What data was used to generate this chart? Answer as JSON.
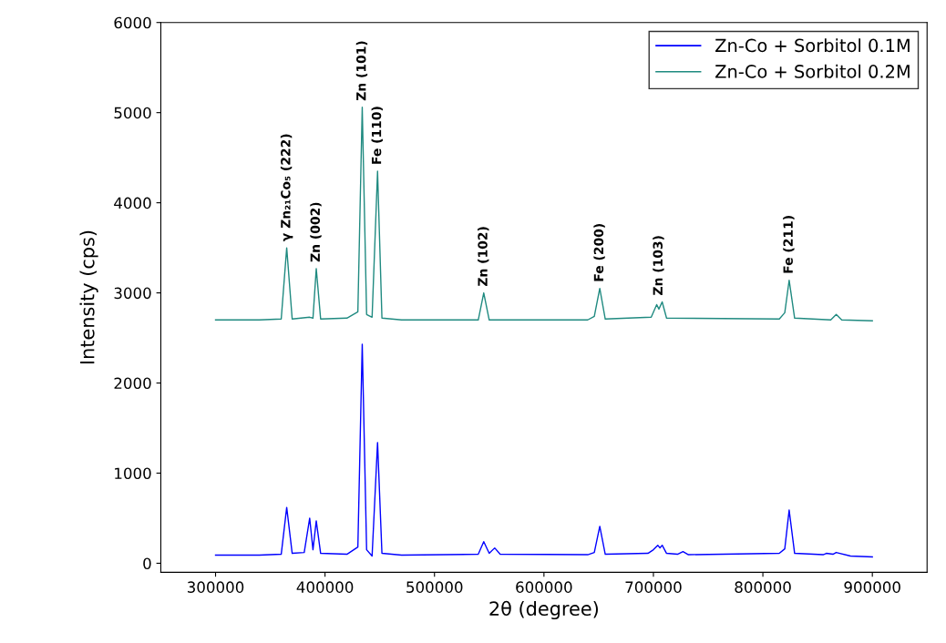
{
  "chart_data": {
    "type": "line",
    "xlabel": "2θ (degree)",
    "ylabel": "Intensity (cps)",
    "xlim": [
      250000,
      950000
    ],
    "xticks": [
      300000,
      400000,
      500000,
      600000,
      700000,
      800000,
      900000
    ],
    "ylim": [
      -100,
      6000
    ],
    "yticks": [
      0,
      1000,
      2000,
      3000,
      4000,
      5000,
      6000
    ],
    "grid": false,
    "legend": "top right",
    "marker": "none",
    "line_style": "solid",
    "series": [
      {
        "name": "Zn-Co + Sorbitol 0.1M",
        "color": "#0000ff",
        "x": [
          300000,
          340000,
          360000,
          365000,
          370000,
          381000,
          386000,
          389000,
          392000,
          396000,
          420000,
          430000,
          434000,
          438000,
          443000,
          448000,
          452000,
          470000,
          540000,
          545000,
          550000,
          555000,
          560000,
          640000,
          646000,
          651000,
          656000,
          695000,
          700000,
          704000,
          706000,
          708000,
          712000,
          722000,
          727000,
          732000,
          815000,
          820000,
          824000,
          829000,
          855000,
          858000,
          864000,
          867000,
          880000,
          900000
        ],
        "values": [
          90,
          90,
          100,
          620,
          110,
          120,
          500,
          150,
          470,
          110,
          100,
          180,
          2430,
          150,
          80,
          1340,
          110,
          90,
          100,
          240,
          110,
          170,
          100,
          95,
          120,
          410,
          100,
          110,
          150,
          200,
          170,
          200,
          110,
          100,
          130,
          95,
          110,
          160,
          590,
          110,
          95,
          110,
          100,
          120,
          80,
          70
        ]
      },
      {
        "name": "Zn-Co + Sorbitol 0.2M",
        "color": "#1f8a80",
        "x": [
          300000,
          340000,
          360000,
          365000,
          370000,
          386000,
          389000,
          392000,
          396000,
          420000,
          430000,
          434000,
          438000,
          443000,
          448000,
          452000,
          470000,
          540000,
          545000,
          550000,
          640000,
          646000,
          651000,
          656000,
          698000,
          703000,
          705000,
          708000,
          712000,
          815000,
          820000,
          824000,
          829000,
          862000,
          867000,
          872000,
          900000
        ],
        "values": [
          2700,
          2700,
          2710,
          3500,
          2710,
          2730,
          2720,
          3270,
          2710,
          2720,
          2790,
          5060,
          2760,
          2730,
          4350,
          2720,
          2700,
          2700,
          3000,
          2700,
          2700,
          2740,
          3050,
          2710,
          2730,
          2870,
          2820,
          2900,
          2720,
          2710,
          2780,
          3140,
          2720,
          2700,
          2760,
          2700,
          2690
        ]
      }
    ],
    "annotations": [
      {
        "text": "γ Zn₂₁Co₅ (222)",
        "x": 365000,
        "y": 3500
      },
      {
        "text": "Zn (002)",
        "x": 392000,
        "y": 3270
      },
      {
        "text": "Zn (101)",
        "x": 434000,
        "y": 5060
      },
      {
        "text": "Fe (110)",
        "x": 448000,
        "y": 4350
      },
      {
        "text": "Zn (102)",
        "x": 545000,
        "y": 3000
      },
      {
        "text": "Fe (200)",
        "x": 651000,
        "y": 3050
      },
      {
        "text": "Zn (103)",
        "x": 705000,
        "y": 2900
      },
      {
        "text": "Fe (211)",
        "x": 824000,
        "y": 3140
      }
    ]
  }
}
